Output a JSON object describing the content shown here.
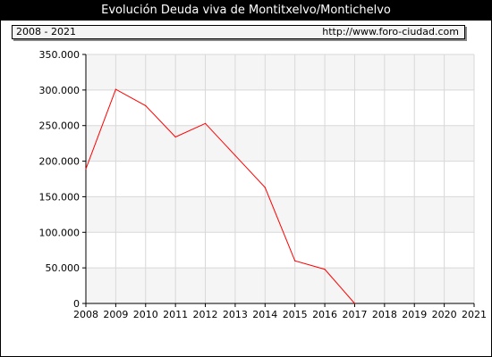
{
  "title": "Evolución Deuda viva de Montitxelvo/Montichelvo",
  "period": "2008 - 2021",
  "source_url": "http://www.foro-ciudad.com",
  "colors": {
    "line": "#ff0000",
    "band": "#f5f5f5",
    "grid": "#d8d8d8"
  },
  "chart_data": {
    "type": "line",
    "title": "Evolución Deuda viva de Montitxelvo/Montichelvo",
    "xlabel": "",
    "ylabel": "",
    "x": [
      2008,
      2009,
      2010,
      2011,
      2012,
      2013,
      2014,
      2015,
      2016,
      2017
    ],
    "values": [
      189000,
      301000,
      278000,
      234000,
      253000,
      208000,
      163000,
      60000,
      48000,
      0
    ],
    "xticks": [
      "2008",
      "2009",
      "2010",
      "2011",
      "2012",
      "2013",
      "2014",
      "2015",
      "2016",
      "2017",
      "2018",
      "2019",
      "2020",
      "2021"
    ],
    "yticks": [
      "0",
      "50.000",
      "100.000",
      "150.000",
      "200.000",
      "250.000",
      "300.000",
      "350.000"
    ],
    "xlim": [
      2008,
      2021
    ],
    "ylim": [
      0,
      350000
    ],
    "grid": true
  }
}
